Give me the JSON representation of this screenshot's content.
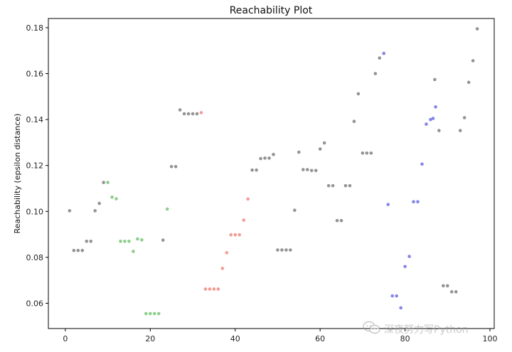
{
  "chart_data": {
    "type": "scatter",
    "title": "Reachability Plot",
    "xlabel": "",
    "ylabel": "Reachability (epsilon distance)",
    "xlim": [
      -4,
      101
    ],
    "ylim": [
      0.049,
      0.184
    ],
    "xticks": [
      0,
      20,
      40,
      60,
      80,
      100
    ],
    "yticks": [
      0.06,
      0.08,
      0.1,
      0.12,
      0.14,
      0.16,
      0.18
    ],
    "grid": false,
    "colors": {
      "noise": "#808080",
      "green": "#79c679",
      "red": "#f08c80",
      "blue": "#7070e8"
    },
    "series": [
      {
        "color_key": "noise",
        "points": [
          [
            1,
            0.1003
          ],
          [
            2,
            0.083
          ],
          [
            3,
            0.083
          ],
          [
            4,
            0.083
          ],
          [
            5,
            0.087
          ],
          [
            6,
            0.087
          ],
          [
            7,
            0.1003
          ],
          [
            8,
            0.1035
          ],
          [
            9,
            0.1126
          ],
          [
            23,
            0.0875
          ],
          [
            25,
            0.1195
          ],
          [
            26,
            0.1195
          ],
          [
            27,
            0.1442
          ],
          [
            28,
            0.1425
          ],
          [
            29,
            0.1425
          ],
          [
            30,
            0.1425
          ],
          [
            31,
            0.1425
          ],
          [
            44,
            0.118
          ],
          [
            45,
            0.118
          ],
          [
            46,
            0.123
          ],
          [
            47,
            0.1232
          ],
          [
            48,
            0.1232
          ],
          [
            49,
            0.1248
          ],
          [
            50,
            0.0832
          ],
          [
            51,
            0.0832
          ],
          [
            52,
            0.0832
          ],
          [
            53,
            0.0832
          ],
          [
            54,
            0.1005
          ],
          [
            55,
            0.1258
          ],
          [
            56,
            0.1182
          ],
          [
            57,
            0.1182
          ],
          [
            58,
            0.1178
          ],
          [
            59,
            0.1178
          ],
          [
            60,
            0.1272
          ],
          [
            61,
            0.1298
          ],
          [
            62,
            0.1112
          ],
          [
            63,
            0.1112
          ],
          [
            64,
            0.096
          ],
          [
            65,
            0.096
          ],
          [
            66,
            0.1112
          ],
          [
            67,
            0.1112
          ],
          [
            68,
            0.1392
          ],
          [
            69,
            0.1512
          ],
          [
            70,
            0.1254
          ],
          [
            71,
            0.1254
          ],
          [
            72,
            0.1254
          ],
          [
            73,
            0.16
          ],
          [
            74,
            0.1668
          ],
          [
            87,
            0.1574
          ],
          [
            88,
            0.1352
          ],
          [
            89,
            0.0676
          ],
          [
            90,
            0.0676
          ],
          [
            91,
            0.065
          ],
          [
            92,
            0.065
          ],
          [
            93,
            0.1352
          ],
          [
            94,
            0.1408
          ],
          [
            95,
            0.1562
          ],
          [
            96,
            0.1656
          ],
          [
            97,
            0.1795
          ]
        ]
      },
      {
        "color_key": "green",
        "points": [
          [
            10,
            0.1126
          ],
          [
            11,
            0.1062
          ],
          [
            12,
            0.1055
          ],
          [
            13,
            0.087
          ],
          [
            14,
            0.087
          ],
          [
            15,
            0.087
          ],
          [
            16,
            0.0826
          ],
          [
            17,
            0.088
          ],
          [
            18,
            0.0876
          ],
          [
            19,
            0.0555
          ],
          [
            20,
            0.0555
          ],
          [
            21,
            0.0555
          ],
          [
            22,
            0.0555
          ],
          [
            24,
            0.101
          ]
        ]
      },
      {
        "color_key": "red",
        "points": [
          [
            32,
            0.143
          ],
          [
            33,
            0.0662
          ],
          [
            34,
            0.0662
          ],
          [
            35,
            0.0662
          ],
          [
            36,
            0.0662
          ],
          [
            37,
            0.0752
          ],
          [
            38,
            0.082
          ],
          [
            39,
            0.0898
          ],
          [
            40,
            0.0898
          ],
          [
            41,
            0.0898
          ],
          [
            42,
            0.0962
          ],
          [
            43,
            0.1054
          ]
        ]
      },
      {
        "color_key": "blue",
        "points": [
          [
            75,
            0.1688
          ],
          [
            76,
            0.103
          ],
          [
            77,
            0.0632
          ],
          [
            78,
            0.0632
          ],
          [
            79,
            0.058
          ],
          [
            80,
            0.076
          ],
          [
            81,
            0.0804
          ],
          [
            82,
            0.1042
          ],
          [
            83,
            0.1042
          ],
          [
            84,
            0.1206
          ],
          [
            85,
            0.138
          ],
          [
            86,
            0.14
          ],
          [
            86.6,
            0.1405
          ],
          [
            87.2,
            0.1455
          ]
        ]
      }
    ]
  },
  "watermark": {
    "text": "深夜努力写Python",
    "icon": "wechat-icon"
  }
}
